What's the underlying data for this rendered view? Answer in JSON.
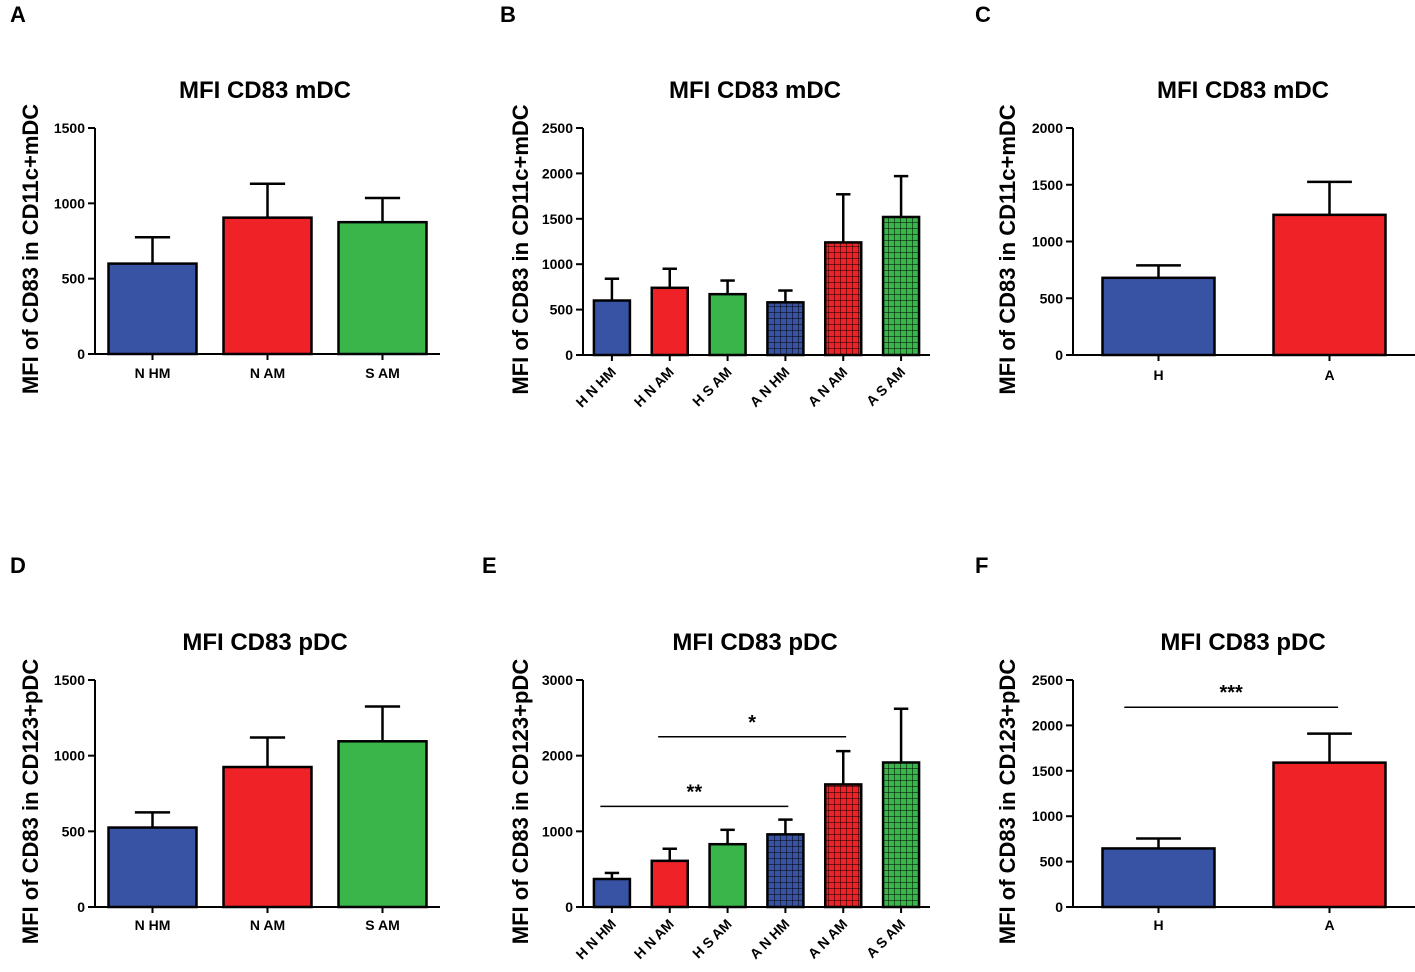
{
  "figure": {
    "panels": [
      "A",
      "B",
      "C",
      "D",
      "E",
      "F"
    ]
  },
  "colors": {
    "blue": "#3953a4",
    "red": "#ee2227",
    "green": "#39b54a"
  },
  "chart_data": [
    {
      "panel": "A",
      "type": "bar",
      "title": "MFI CD83 mDC",
      "ylabel": "MFI of CD83 in CD11c+mDC",
      "xlabel": "",
      "ylim": [
        0,
        1500
      ],
      "yticks": [
        0,
        500,
        1000,
        1500
      ],
      "categories": [
        "N HM",
        "N AM",
        "S AM"
      ],
      "values": [
        600,
        905,
        875
      ],
      "errors": [
        175,
        225,
        160
      ],
      "colors": [
        "blue",
        "red",
        "green"
      ],
      "pattern": [
        false,
        false,
        false
      ],
      "rotated_labels": false,
      "significance": []
    },
    {
      "panel": "B",
      "type": "bar",
      "title": "MFI CD83 mDC",
      "ylabel": "MFI of CD83 in CD11c+mDC",
      "xlabel": "",
      "ylim": [
        0,
        2500
      ],
      "yticks": [
        0,
        500,
        1000,
        1500,
        2000,
        2500
      ],
      "categories": [
        "H N HM",
        "H N AM",
        "H S AM",
        "A N HM",
        "A N AM",
        "A S AM"
      ],
      "values": [
        600,
        740,
        670,
        580,
        1240,
        1520
      ],
      "errors": [
        240,
        210,
        150,
        130,
        530,
        450
      ],
      "colors": [
        "blue",
        "red",
        "green",
        "blue",
        "red",
        "green"
      ],
      "pattern": [
        false,
        false,
        false,
        true,
        true,
        true
      ],
      "rotated_labels": true,
      "significance": []
    },
    {
      "panel": "C",
      "type": "bar",
      "title": "MFI CD83 mDC",
      "ylabel": "MFI of CD83 in CD11c+mDC",
      "xlabel": "",
      "ylim": [
        0,
        2000
      ],
      "yticks": [
        0,
        500,
        1000,
        1500,
        2000
      ],
      "categories": [
        "H",
        "A"
      ],
      "values": [
        680,
        1235
      ],
      "errors": [
        110,
        290
      ],
      "colors": [
        "blue",
        "red"
      ],
      "pattern": [
        false,
        false
      ],
      "rotated_labels": false,
      "significance": []
    },
    {
      "panel": "D",
      "type": "bar",
      "title": "MFI CD83 pDC",
      "ylabel": "MFI of CD83 in CD123+pDC",
      "xlabel": "",
      "ylim": [
        0,
        1500
      ],
      "yticks": [
        0,
        500,
        1000,
        1500
      ],
      "categories": [
        "N HM",
        "N AM",
        "S AM"
      ],
      "values": [
        525,
        925,
        1095
      ],
      "errors": [
        100,
        195,
        230
      ],
      "colors": [
        "blue",
        "red",
        "green"
      ],
      "pattern": [
        false,
        false,
        false
      ],
      "rotated_labels": false,
      "significance": []
    },
    {
      "panel": "E",
      "type": "bar",
      "title": "MFI CD83 pDC",
      "ylabel": "MFI of CD83 in CD123+pDC",
      "xlabel": "",
      "ylim": [
        0,
        3000
      ],
      "yticks": [
        0,
        1000,
        2000,
        3000
      ],
      "categories": [
        "H N HM",
        "H N AM",
        "H S AM",
        "A N HM",
        "A N AM",
        "A S AM"
      ],
      "values": [
        370,
        610,
        830,
        960,
        1620,
        1910
      ],
      "errors": [
        80,
        160,
        190,
        195,
        440,
        710
      ],
      "colors": [
        "blue",
        "red",
        "green",
        "blue",
        "red",
        "green"
      ],
      "pattern": [
        false,
        false,
        false,
        true,
        true,
        true
      ],
      "rotated_labels": true,
      "significance": [
        {
          "from": 1,
          "to": 4,
          "y": 2250,
          "label": "*"
        },
        {
          "from": 0,
          "to": 3,
          "y": 1330,
          "label": "**"
        }
      ]
    },
    {
      "panel": "F",
      "type": "bar",
      "title": "MFI CD83 pDC",
      "ylabel": "MFI of CD83 in CD123+pDC",
      "xlabel": "",
      "ylim": [
        0,
        2500
      ],
      "yticks": [
        0,
        500,
        1000,
        1500,
        2000,
        2500
      ],
      "categories": [
        "H",
        "A"
      ],
      "values": [
        645,
        1590
      ],
      "errors": [
        110,
        320
      ],
      "colors": [
        "blue",
        "red"
      ],
      "pattern": [
        false,
        false
      ],
      "rotated_labels": false,
      "significance": [
        {
          "from": 0,
          "to": 1,
          "y": 2200,
          "label": "***"
        }
      ]
    }
  ]
}
